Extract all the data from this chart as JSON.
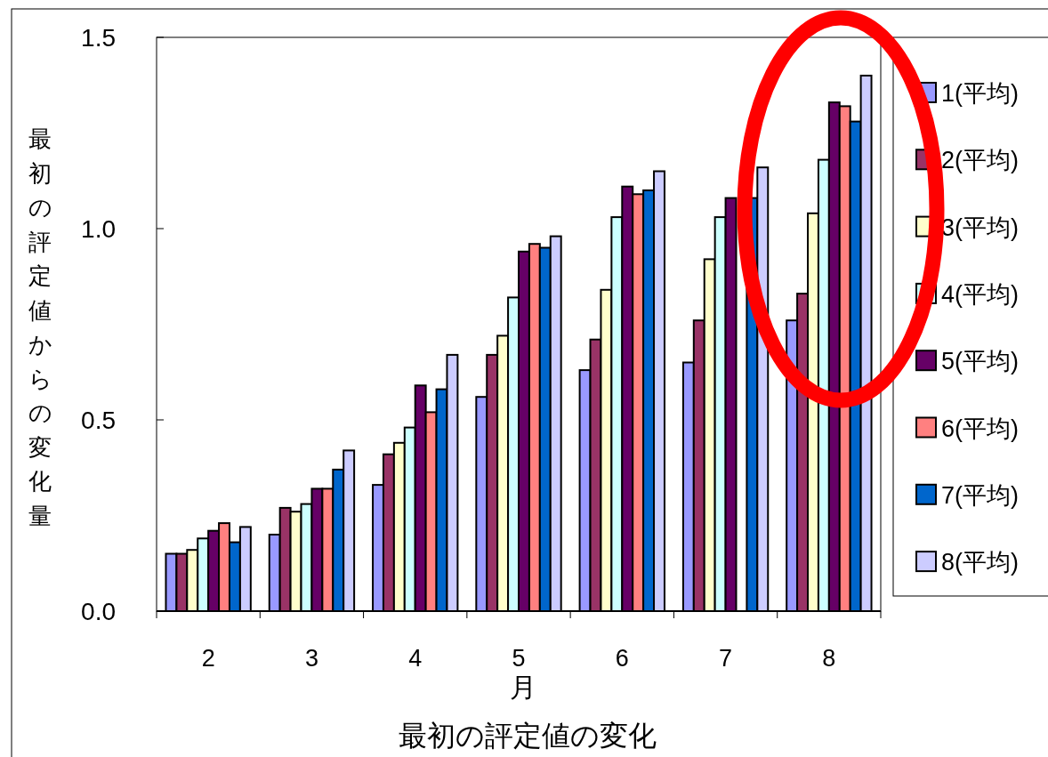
{
  "chart_data": {
    "type": "bar",
    "title": "最初の評定値の変化",
    "xlabel": "月",
    "ylabel": "最初の評定値からの変化量",
    "categories": [
      "2",
      "3",
      "4",
      "5",
      "6",
      "7",
      "8"
    ],
    "series": [
      {
        "name": "1(平均)",
        "color": "#9999ff",
        "values": [
          0.15,
          0.2,
          0.33,
          0.56,
          0.63,
          0.65,
          0.76
        ]
      },
      {
        "name": "2(平均)",
        "color": "#993366",
        "values": [
          0.15,
          0.27,
          0.41,
          0.67,
          0.71,
          0.76,
          0.83
        ]
      },
      {
        "name": "3(平均)",
        "color": "#ffffcc",
        "values": [
          0.16,
          0.26,
          0.44,
          0.72,
          0.84,
          0.92,
          1.04
        ]
      },
      {
        "name": "4(平均)",
        "color": "#ccffff",
        "values": [
          0.19,
          0.28,
          0.48,
          0.82,
          1.03,
          1.03,
          1.18
        ]
      },
      {
        "name": "5(平均)",
        "color": "#660066",
        "values": [
          0.21,
          0.32,
          0.59,
          0.94,
          1.11,
          1.08,
          1.33
        ]
      },
      {
        "name": "6(平均)",
        "color": "#ff8080",
        "values": [
          0.23,
          0.32,
          0.52,
          0.96,
          1.09,
          null,
          1.32
        ]
      },
      {
        "name": "7(平均)",
        "color": "#0066cc",
        "values": [
          0.18,
          0.37,
          0.58,
          0.95,
          1.1,
          1.08,
          1.28
        ]
      },
      {
        "name": "8(平均)",
        "color": "#ccccff",
        "values": [
          0.22,
          0.42,
          0.67,
          0.98,
          1.15,
          1.16,
          1.4
        ]
      }
    ],
    "ylim": [
      0,
      1.5
    ],
    "yticks": [
      {
        "value": 0,
        "label": "0.0"
      },
      0.5,
      {
        "value": 1,
        "label": "1.0"
      },
      1.5
    ],
    "legend": "right"
  }
}
